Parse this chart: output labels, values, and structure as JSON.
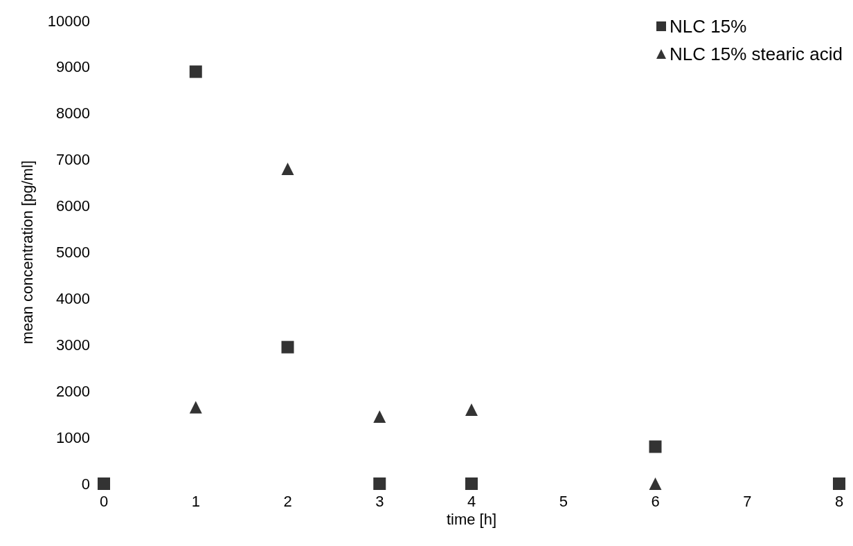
{
  "chart_data": {
    "type": "scatter",
    "xlabel": "time [h]",
    "ylabel": "mean concentration [pg/ml]",
    "xlim": [
      0,
      8
    ],
    "xticks": [
      0,
      1,
      2,
      3,
      4,
      5,
      6,
      7,
      8
    ],
    "ylim": [
      0,
      10000
    ],
    "yticks": [
      0,
      1000,
      2000,
      3000,
      4000,
      5000,
      6000,
      7000,
      8000,
      9000,
      10000
    ],
    "grid": false,
    "legend": "top right",
    "series": [
      {
        "name": "NLC 15%",
        "color": "#000000",
        "marker": "square",
        "x": [
          0,
          1,
          2,
          3,
          4,
          6,
          8
        ],
        "values": [
          0,
          8900,
          2950,
          0,
          0,
          800,
          0
        ]
      },
      {
        "name": "NLC 15% stearic acid",
        "color": "#000000",
        "marker": "triangle",
        "x": [
          1,
          2,
          3,
          4,
          6
        ],
        "values": [
          1650,
          6800,
          1450,
          1600,
          0
        ]
      }
    ]
  }
}
